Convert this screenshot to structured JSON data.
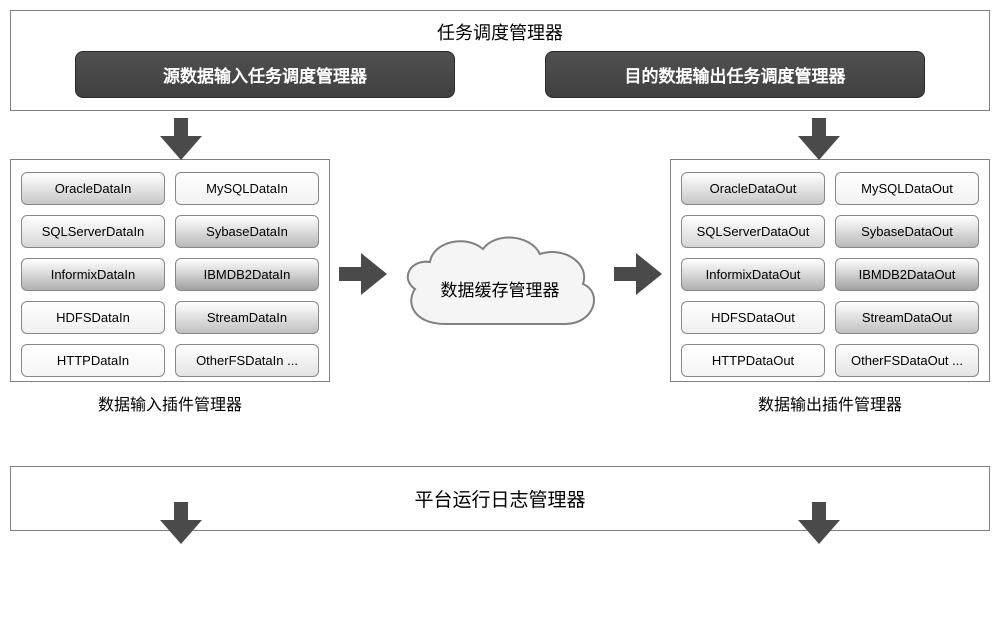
{
  "top": {
    "title": "任务调度管理器",
    "left_button": "源数据输入任务调度管理器",
    "right_button": "目的数据输出任务调度管理器"
  },
  "input_plugins": {
    "caption": "数据输入插件管理器",
    "items": [
      {
        "label": "OracleDataIn",
        "bg": "#c8c8c8"
      },
      {
        "label": "MySQLDataIn",
        "bg": "#f2f2f2"
      },
      {
        "label": "SQLServerDataIn",
        "bg": "#d6d6d6"
      },
      {
        "label": "SybaseDataIn",
        "bg": "#b8b8b8"
      },
      {
        "label": "InformixDataIn",
        "bg": "#b0b0b0"
      },
      {
        "label": "IBMDB2DataIn",
        "bg": "#a0a0a0"
      },
      {
        "label": "HDFSDataIn",
        "bg": "#f0f0f0"
      },
      {
        "label": "StreamDataIn",
        "bg": "#c0c0c0"
      },
      {
        "label": "HTTPDataIn",
        "bg": "#f6f6f6"
      },
      {
        "label": "OtherFSDataIn ...",
        "bg": "#e4e4e4"
      }
    ]
  },
  "output_plugins": {
    "caption": "数据输出插件管理器",
    "items": [
      {
        "label": "OracleDataOut",
        "bg": "#c8c8c8"
      },
      {
        "label": "MySQLDataOut",
        "bg": "#f2f2f2"
      },
      {
        "label": "SQLServerDataOut",
        "bg": "#d6d6d6"
      },
      {
        "label": "SybaseDataOut",
        "bg": "#b8b8b8"
      },
      {
        "label": "InformixDataOut",
        "bg": "#b0b0b0"
      },
      {
        "label": "IBMDB2DataOut",
        "bg": "#a0a0a0"
      },
      {
        "label": "HDFSDataOut",
        "bg": "#f0f0f0"
      },
      {
        "label": "StreamDataOut",
        "bg": "#c0c0c0"
      },
      {
        "label": "HTTPDataOut",
        "bg": "#f6f6f6"
      },
      {
        "label": "OtherFSDataOut ...",
        "bg": "#e4e4e4"
      }
    ]
  },
  "cloud": {
    "label": "数据缓存管理器"
  },
  "bottom": {
    "title": "平台运行日志管理器"
  },
  "style": {
    "arrow_color": "#4a4a4a",
    "cloud_stroke": "#808080",
    "cloud_fill": "#f5f5f5",
    "item_grad_light": "rgba(255,255,255,0.55)"
  },
  "layout": {
    "type": "flowchart",
    "arrows": [
      {
        "from": "top.left_button",
        "to": "input_plugins",
        "dir": "down"
      },
      {
        "from": "top.right_button",
        "to": "output_plugins",
        "dir": "down"
      },
      {
        "from": "input_plugins",
        "to": "cloud",
        "dir": "right"
      },
      {
        "from": "cloud",
        "to": "output_plugins",
        "dir": "right"
      },
      {
        "from": "input_plugins",
        "to": "bottom",
        "dir": "down"
      },
      {
        "from": "output_plugins",
        "to": "bottom",
        "dir": "down"
      }
    ]
  }
}
